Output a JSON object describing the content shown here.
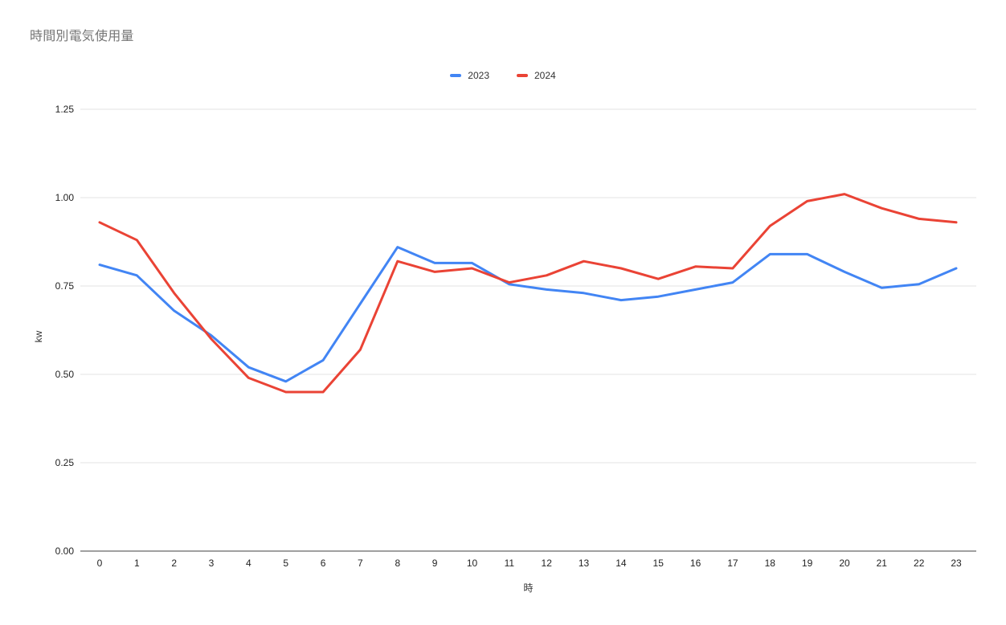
{
  "chart_data": {
    "type": "line",
    "title": "時間別電気使用量",
    "xlabel": "時",
    "ylabel": "kw",
    "x": [
      0,
      1,
      2,
      3,
      4,
      5,
      6,
      7,
      8,
      9,
      10,
      11,
      12,
      13,
      14,
      15,
      16,
      17,
      18,
      19,
      20,
      21,
      22,
      23
    ],
    "series": [
      {
        "name": "2023",
        "color": "#4285F4",
        "values": [
          0.81,
          0.78,
          0.68,
          0.61,
          0.52,
          0.48,
          0.54,
          0.7,
          0.86,
          0.815,
          0.815,
          0.755,
          0.74,
          0.73,
          0.71,
          0.72,
          0.74,
          0.76,
          0.84,
          0.84,
          0.79,
          0.745,
          0.755,
          0.8
        ]
      },
      {
        "name": "2024",
        "color": "#EA4335",
        "values": [
          0.93,
          0.88,
          0.73,
          0.6,
          0.49,
          0.45,
          0.45,
          0.57,
          0.82,
          0.79,
          0.8,
          0.76,
          0.78,
          0.82,
          0.8,
          0.77,
          0.805,
          0.8,
          0.92,
          0.99,
          1.01,
          0.97,
          0.94,
          0.93
        ]
      }
    ],
    "ylim": [
      0,
      1.25
    ],
    "yticks": [
      0,
      0.25,
      0.5,
      0.75,
      1.0,
      1.25
    ],
    "ytick_labels": [
      "0.00",
      "0.25",
      "0.50",
      "0.75",
      "1.00",
      "1.25"
    ],
    "grid": "horizontal-only",
    "legend_position": "top-center",
    "colors": {
      "gridline": "#e3e3e3",
      "baseline": "#424242",
      "tick_text": "#222222",
      "title_text": "#757575"
    }
  }
}
